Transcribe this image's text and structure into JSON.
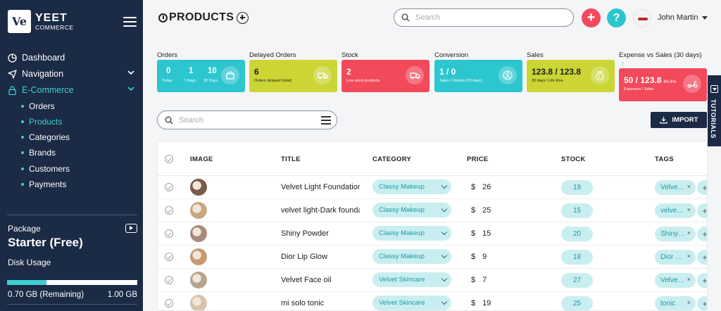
{
  "brand": {
    "logo_mark": "Ve",
    "name": "YEET",
    "tagline": "COMMERCE"
  },
  "sidebar": {
    "items": [
      {
        "label": "Dashboard",
        "icon": "dashboard-icon"
      },
      {
        "label": "Navigation",
        "icon": "navigation-icon"
      },
      {
        "label": "E-Commerce",
        "icon": "lock-icon"
      }
    ],
    "sub_items": [
      {
        "label": "Orders"
      },
      {
        "label": "Products"
      },
      {
        "label": "Categories"
      },
      {
        "label": "Brands"
      },
      {
        "label": "Customers"
      },
      {
        "label": "Payments"
      }
    ],
    "package": {
      "label": "Package",
      "name": "Starter (Free)",
      "disk_label": "Disk Usage",
      "remaining": "0.70 GB (Remaining)",
      "total": "1.00 GB",
      "used_fraction": 0.3
    }
  },
  "header": {
    "title": "PRODUCTS",
    "search_placeholder": "Search",
    "add_symbol": "+",
    "help_symbol": "?",
    "user_name": "John Martin"
  },
  "stats": {
    "orders": {
      "label": "Orders",
      "today_value": "0",
      "today_label": "Today",
      "week_value": "1",
      "week_label": "7 Days",
      "month_value": "10",
      "month_label": "30 Days"
    },
    "delayed": {
      "label": "Delayed Orders",
      "value": "6",
      "sub": "Orders delayed (total)"
    },
    "stock": {
      "label": "Stock",
      "value": "2",
      "sub": "Low stock products"
    },
    "conversion": {
      "label": "Conversion",
      "value": "1 / 0",
      "sub": "Sales / Visitors (30 days)"
    },
    "sales": {
      "label": "Sales",
      "value": "123.8 / 123.8",
      "sub": "30 days / Life time"
    },
    "expense": {
      "label": "Expense vs Sales (30 days)",
      "arrow": "↑",
      "value": "50 / 123.8",
      "percent": "40.4%",
      "sub": "Expenses / Sales"
    }
  },
  "colors": {
    "sidebar": "#1b2a45",
    "teal": "#2cc6cf",
    "lime": "#cbd534",
    "red": "#f2495b",
    "pill": "#c9eef0"
  },
  "list": {
    "search_placeholder": "Search",
    "import_label": "IMPORT",
    "tutorials_label": "TUTORIALS",
    "columns": [
      "IMAGE",
      "TITLE",
      "CATEGORY",
      "PRICE",
      "STOCK",
      "TAGS"
    ],
    "rows": [
      {
        "title": "Velvet Light Foundation",
        "category": "Classy Makeup",
        "currency": "$",
        "price": "26",
        "stock": "19",
        "tag": "Velve…",
        "thumb": "#7a5a48"
      },
      {
        "title": "velvet light-Dark foundation",
        "category": "Classy Makeup",
        "currency": "$",
        "price": "25",
        "stock": "15",
        "tag": "velve…",
        "thumb": "#c9a77d"
      },
      {
        "title": "Shiny Powder",
        "category": "Classy Makeup",
        "currency": "$",
        "price": "15",
        "stock": "20",
        "tag": "Shiny…",
        "thumb": "#a88a79"
      },
      {
        "title": "Dior Lip Glow",
        "category": "Classy Makeup",
        "currency": "$",
        "price": "9",
        "stock": "18",
        "tag": "Dior …",
        "thumb": "#c79a72"
      },
      {
        "title": "Velvet Face oil",
        "category": "Velvet Skincare",
        "currency": "$",
        "price": "7",
        "stock": "27",
        "tag": "Velve…",
        "thumb": "#b8a48e"
      },
      {
        "title": "mi solo tonic",
        "category": "Velvet Skincare",
        "currency": "$",
        "price": "19",
        "stock": "25",
        "tag": "tonic",
        "thumb": "#d8c3a8"
      }
    ]
  }
}
